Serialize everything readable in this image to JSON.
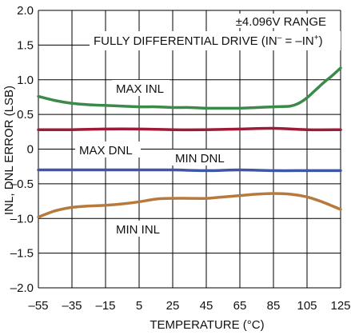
{
  "chart_data": {
    "type": "line",
    "xlabel": "TEMPERATURE (°C)",
    "ylabel": "INL, DNL ERROR (LSB)",
    "xlim": [
      -55,
      125
    ],
    "ylim": [
      -2.0,
      2.0
    ],
    "x_ticks": [
      -55,
      -35,
      -15,
      5,
      25,
      45,
      65,
      85,
      105,
      125
    ],
    "x_tick_labels": [
      "–55",
      "–35",
      "–15",
      "5",
      "25",
      "45",
      "65",
      "85",
      "105",
      "125"
    ],
    "y_ticks": [
      -2.0,
      -1.5,
      -1.0,
      -0.5,
      0,
      0.5,
      1.0,
      1.5,
      2.0
    ],
    "y_tick_labels": [
      "–2.0",
      "–1.5",
      "–1.0",
      "–0.5",
      "0",
      "0.5",
      "1.0",
      "1.5",
      "2.0"
    ],
    "grid": true,
    "annotations": {
      "range": "±4.096V RANGE",
      "drive_prefix": "FULLY DIFFERENTIAL DRIVE (IN",
      "drive_sup1": "–",
      "drive_mid": " = –IN",
      "drive_sup2": "+",
      "drive_suffix": ")"
    },
    "series": [
      {
        "name": "MAX INL",
        "color": "#3a8a4a",
        "x": [
          -55,
          -45,
          -35,
          -25,
          -15,
          -5,
          5,
          15,
          25,
          35,
          45,
          55,
          65,
          75,
          85,
          95,
          100,
          105,
          110,
          115,
          120,
          125
        ],
        "y": [
          0.76,
          0.7,
          0.66,
          0.64,
          0.63,
          0.62,
          0.61,
          0.61,
          0.6,
          0.6,
          0.59,
          0.59,
          0.59,
          0.6,
          0.61,
          0.62,
          0.66,
          0.74,
          0.85,
          0.96,
          1.06,
          1.17
        ]
      },
      {
        "name": "MAX DNL",
        "color": "#9c1b36",
        "x": [
          -55,
          -35,
          -15,
          5,
          25,
          45,
          65,
          85,
          105,
          125
        ],
        "y": [
          0.28,
          0.28,
          0.29,
          0.29,
          0.28,
          0.28,
          0.29,
          0.3,
          0.28,
          0.28
        ]
      },
      {
        "name": "MIN DNL",
        "color": "#3f56a8",
        "x": [
          -55,
          -35,
          -15,
          5,
          25,
          45,
          65,
          85,
          105,
          125
        ],
        "y": [
          -0.3,
          -0.3,
          -0.3,
          -0.3,
          -0.3,
          -0.31,
          -0.3,
          -0.31,
          -0.31,
          -0.31
        ]
      },
      {
        "name": "MIN INL",
        "color": "#b87a3c",
        "x": [
          -55,
          -45,
          -35,
          -25,
          -15,
          -5,
          5,
          15,
          25,
          35,
          45,
          55,
          65,
          75,
          85,
          95,
          105,
          115,
          125
        ],
        "y": [
          -0.98,
          -0.89,
          -0.84,
          -0.82,
          -0.81,
          -0.79,
          -0.76,
          -0.72,
          -0.71,
          -0.71,
          -0.71,
          -0.69,
          -0.67,
          -0.65,
          -0.64,
          -0.65,
          -0.69,
          -0.77,
          -0.87
        ]
      }
    ]
  }
}
